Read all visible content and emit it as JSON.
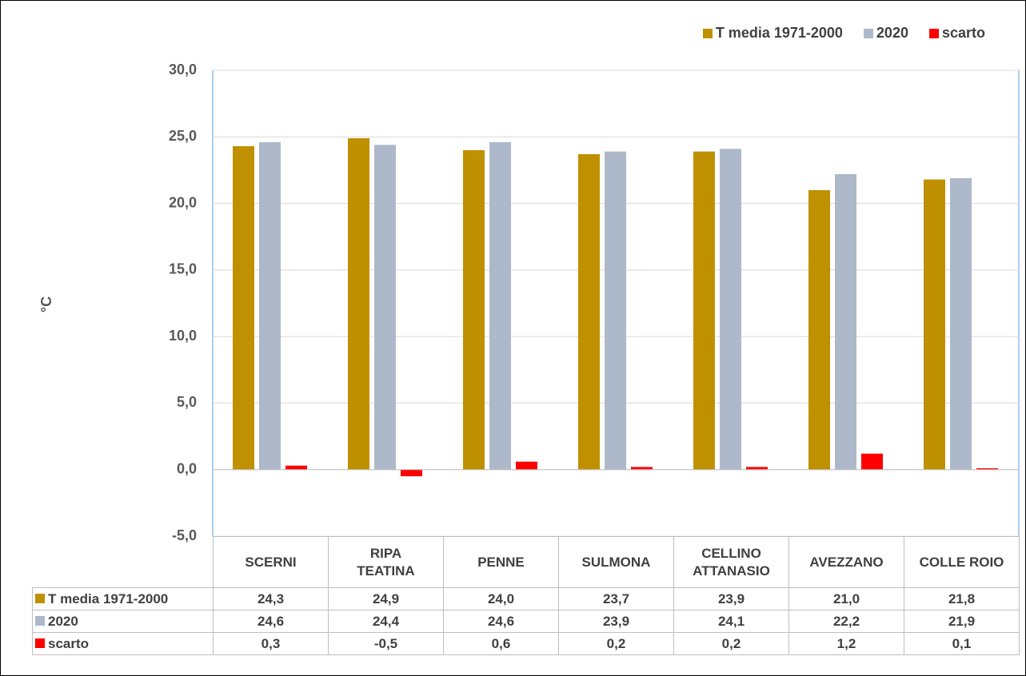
{
  "chart_data": {
    "type": "bar",
    "y_label": "°C",
    "categories": [
      "SCERNI",
      "RIPA TEATINA",
      "PENNE",
      "SULMONA",
      "CELLINO ATTANASIO",
      "AVEZZANO",
      "COLLE ROIO"
    ],
    "series": [
      {
        "name": "T media 1971-2000",
        "color": "#bf9000",
        "values": [
          24.3,
          24.9,
          24.0,
          23.7,
          23.9,
          21.0,
          21.8
        ],
        "value_labels": [
          "24,3",
          "24,9",
          "24,0",
          "23,7",
          "23,9",
          "21,0",
          "21,8"
        ]
      },
      {
        "name": "2020",
        "color": "#adb9ca",
        "values": [
          24.6,
          24.4,
          24.6,
          23.9,
          24.1,
          22.2,
          21.9
        ],
        "value_labels": [
          "24,6",
          "24,4",
          "24,6",
          "23,9",
          "24,1",
          "22,2",
          "21,9"
        ]
      },
      {
        "name": "scarto",
        "color": "#ff0000",
        "values": [
          0.3,
          -0.5,
          0.6,
          0.2,
          0.2,
          1.2,
          0.1
        ],
        "value_labels": [
          "0,3",
          "-0,5",
          "0,6",
          "0,2",
          "0,2",
          "1,2",
          "0,1"
        ]
      }
    ],
    "ylim": [
      -5,
      30
    ],
    "yticks": [
      {
        "value": -5,
        "label": "-5,0"
      },
      {
        "value": 0,
        "label": "0,0"
      },
      {
        "value": 5,
        "label": "5,0"
      },
      {
        "value": 10,
        "label": "10,0"
      },
      {
        "value": 15,
        "label": "15,0"
      },
      {
        "value": 20,
        "label": "20,0"
      },
      {
        "value": 25,
        "label": "25,0"
      },
      {
        "value": 30,
        "label": "30,0"
      }
    ],
    "grid": true,
    "legend": "top-right"
  }
}
